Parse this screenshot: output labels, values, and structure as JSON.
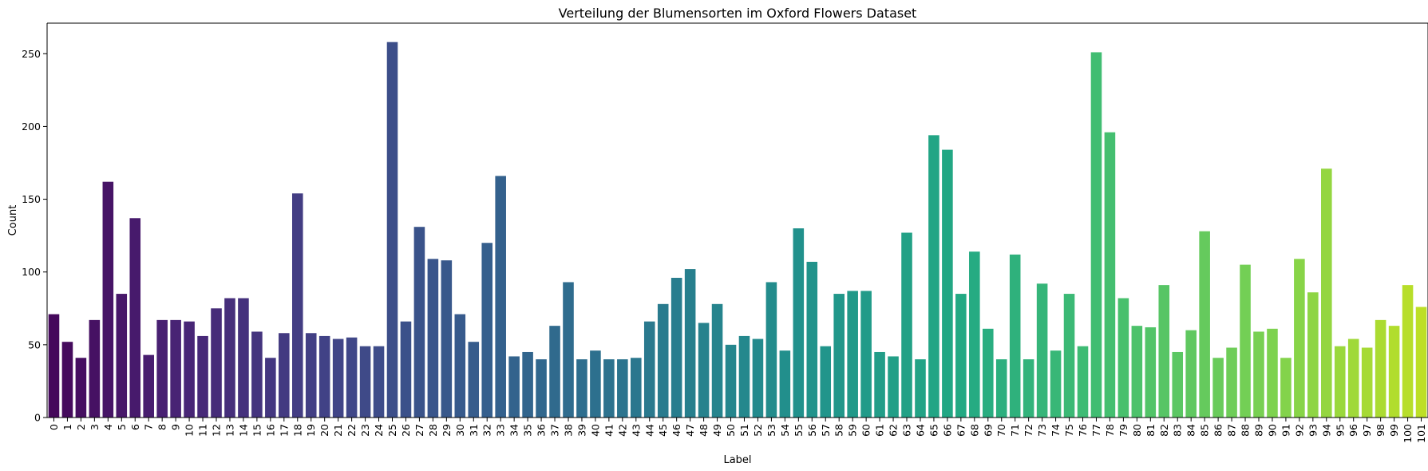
{
  "chart_data": {
    "type": "bar",
    "title": "Verteilung der Blumensorten im Oxford Flowers Dataset",
    "xlabel": "Label",
    "ylabel": "Count",
    "ylim": [
      0,
      271
    ],
    "yticks": [
      0,
      50,
      100,
      150,
      200,
      250
    ],
    "grid": false,
    "palette": "viridis",
    "categories": [
      "0",
      "1",
      "2",
      "3",
      "4",
      "5",
      "6",
      "7",
      "8",
      "9",
      "10",
      "11",
      "12",
      "13",
      "14",
      "15",
      "16",
      "17",
      "18",
      "19",
      "20",
      "21",
      "22",
      "23",
      "24",
      "25",
      "26",
      "27",
      "28",
      "29",
      "30",
      "31",
      "32",
      "33",
      "34",
      "35",
      "36",
      "37",
      "38",
      "39",
      "40",
      "41",
      "42",
      "43",
      "44",
      "45",
      "46",
      "47",
      "48",
      "49",
      "50",
      "51",
      "52",
      "53",
      "54",
      "55",
      "56",
      "57",
      "58",
      "59",
      "60",
      "61",
      "62",
      "63",
      "64",
      "65",
      "66",
      "67",
      "68",
      "69",
      "70",
      "71",
      "72",
      "73",
      "74",
      "75",
      "76",
      "77",
      "78",
      "79",
      "80",
      "81",
      "82",
      "83",
      "84",
      "85",
      "86",
      "87",
      "88",
      "89",
      "90",
      "91",
      "92",
      "93",
      "94",
      "95",
      "96",
      "97",
      "98",
      "99",
      "100",
      "101"
    ],
    "values": [
      71,
      52,
      41,
      67,
      162,
      85,
      137,
      43,
      67,
      67,
      66,
      56,
      75,
      82,
      82,
      59,
      41,
      58,
      154,
      58,
      56,
      54,
      55,
      49,
      49,
      258,
      66,
      131,
      109,
      108,
      71,
      52,
      120,
      166,
      42,
      45,
      40,
      63,
      93,
      40,
      46,
      40,
      40,
      41,
      66,
      78,
      96,
      102,
      65,
      78,
      50,
      56,
      54,
      93,
      46,
      130,
      107,
      49,
      85,
      87,
      87,
      45,
      42,
      127,
      40,
      194,
      184,
      85,
      114,
      61,
      40,
      112,
      40,
      92,
      46,
      85,
      49,
      251,
      196,
      82,
      63,
      62,
      91,
      45,
      60,
      128,
      41,
      48,
      105,
      59,
      61,
      41,
      109,
      86,
      171,
      49,
      54,
      48,
      67,
      63,
      91,
      76
    ]
  }
}
